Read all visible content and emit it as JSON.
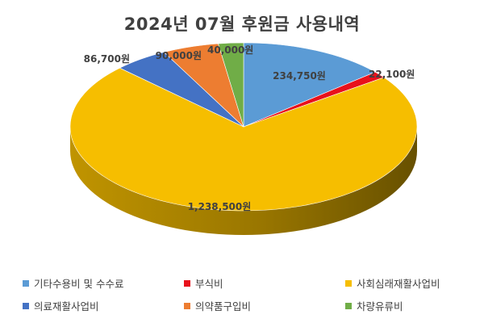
{
  "chart_data": {
    "type": "pie",
    "title": "2024년 07월 후원금 사용내역",
    "legend_position": "bottom",
    "slices": [
      {
        "label": "기타수용비 및 수수료",
        "value": 234750,
        "value_label": "234,750원",
        "color": "#5B9BD5"
      },
      {
        "label": "부식비",
        "value": 22100,
        "value_label": "22,100원",
        "color": "#E8111B"
      },
      {
        "label": "사회심래재활사업비",
        "value": 1238500,
        "value_label": "1,238,500원",
        "color": "#F6BE00"
      },
      {
        "label": "의료재활사업비",
        "value": 86700,
        "value_label": "86,700원",
        "color": "#4472C4"
      },
      {
        "label": "의약품구입비",
        "value": 90000,
        "value_label": "90,000원",
        "color": "#ED7D31"
      },
      {
        "label": "차량유류비",
        "value": 40000,
        "value_label": "40,000원",
        "color": "#70AD47"
      }
    ]
  }
}
